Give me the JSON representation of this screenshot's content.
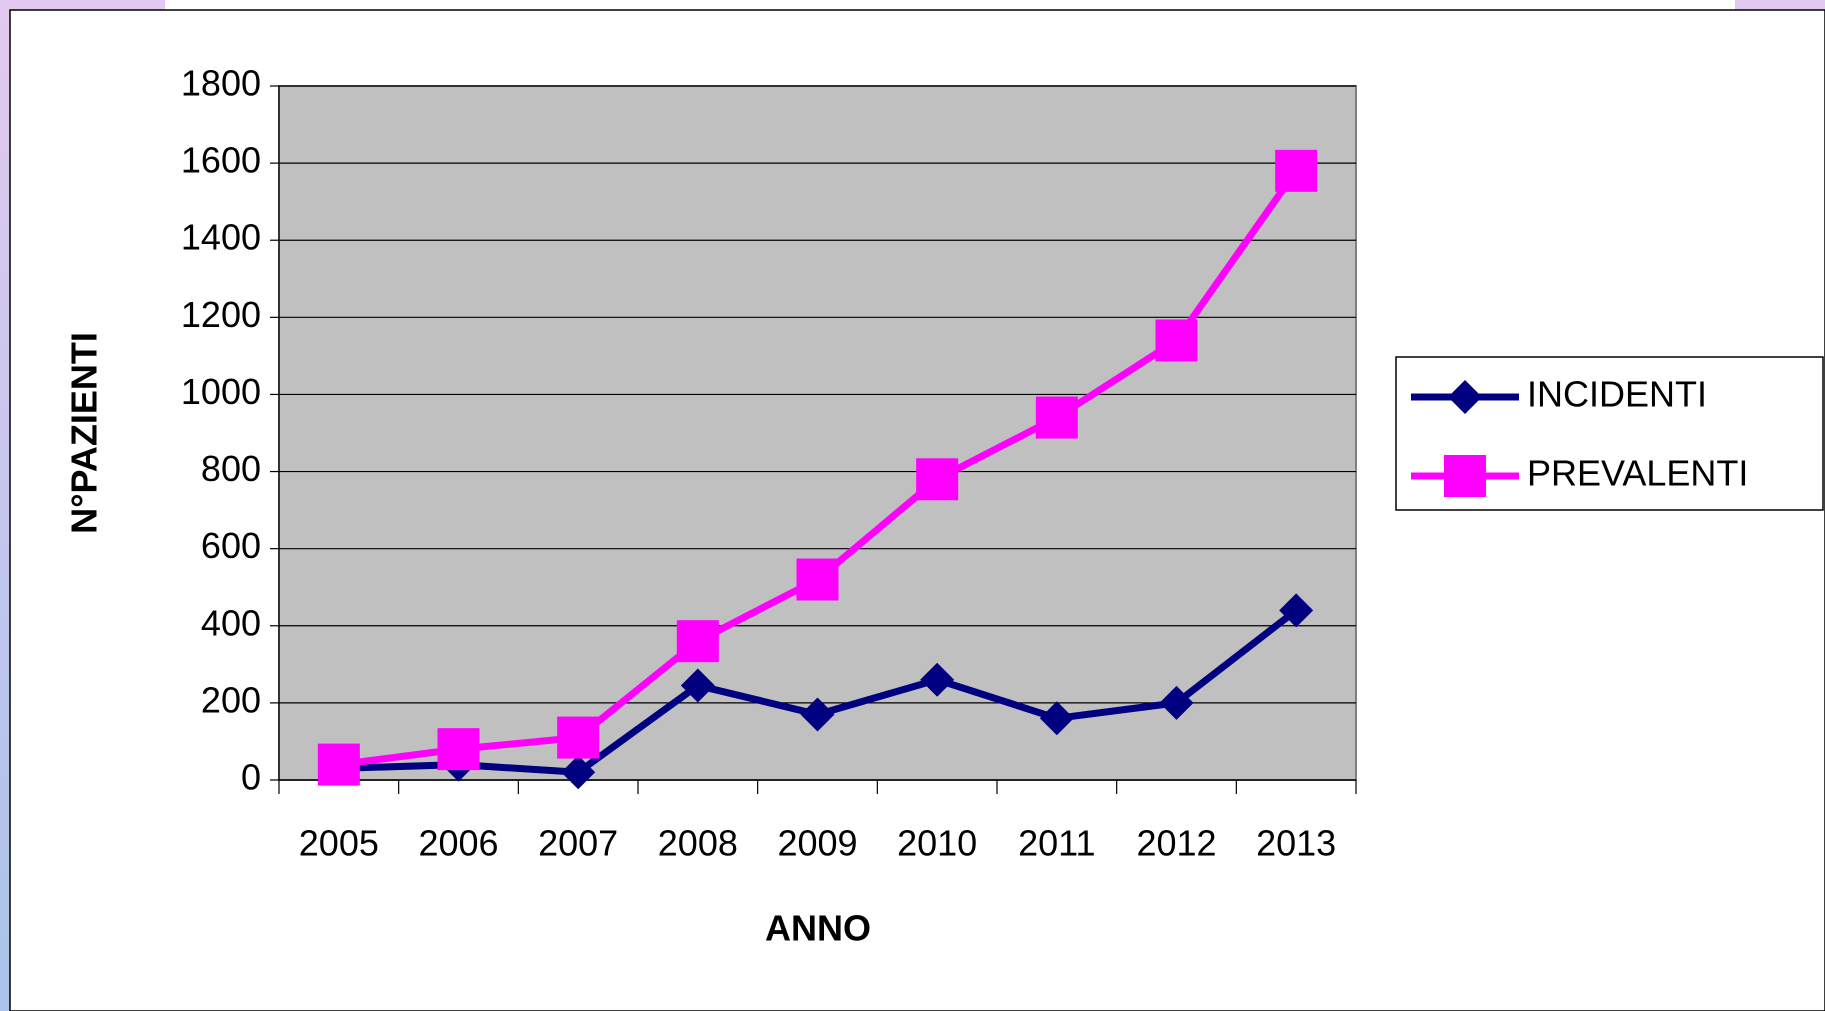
{
  "chart_data": {
    "type": "line",
    "xlabel": "ANNO",
    "ylabel": "N°PAZIENTI",
    "categories": [
      "2005",
      "2006",
      "2007",
      "2008",
      "2009",
      "2010",
      "2011",
      "2012",
      "2013"
    ],
    "series": [
      {
        "name": "INCIDENTI",
        "color": "#000080",
        "marker": "diamond",
        "values": [
          30,
          40,
          20,
          245,
          170,
          260,
          160,
          200,
          440
        ]
      },
      {
        "name": "PREVALENTI",
        "color": "#ff00ff",
        "marker": "square",
        "values": [
          40,
          80,
          110,
          360,
          520,
          780,
          940,
          1140,
          1580
        ]
      }
    ],
    "ylim": [
      0,
      1800
    ],
    "yticks": [
      0,
      200,
      400,
      600,
      800,
      1000,
      1200,
      1400,
      1600,
      1800
    ],
    "grid": true,
    "legend": "right",
    "plot_background": "#c0c0c0"
  }
}
